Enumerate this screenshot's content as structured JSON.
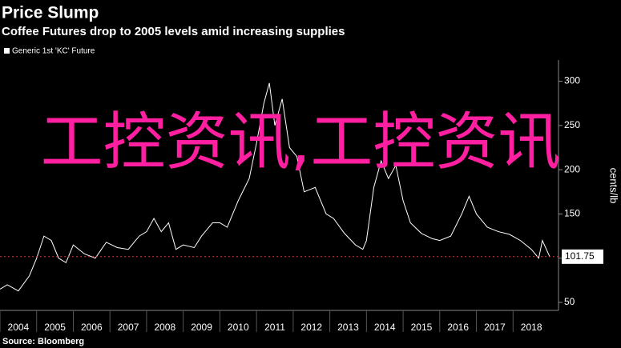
{
  "chart_data": {
    "type": "line",
    "title": "Price Slump",
    "subtitle": "Coffee Futures drop to 2005 levels amid increasing supplies",
    "y_label": "cents/lb",
    "source": "Source: Bloomberg",
    "watermark": "工控资讯,工控资讯",
    "x": [
      2004.0,
      2004.2,
      2004.5,
      2004.8,
      2005.0,
      2005.2,
      2005.4,
      2005.6,
      2005.8,
      2006.0,
      2006.3,
      2006.6,
      2006.9,
      2007.2,
      2007.5,
      2007.8,
      2008.0,
      2008.2,
      2008.4,
      2008.6,
      2008.8,
      2009.0,
      2009.3,
      2009.5,
      2009.8,
      2010.0,
      2010.2,
      2010.5,
      2010.8,
      2011.0,
      2011.2,
      2011.35,
      2011.5,
      2011.7,
      2011.9,
      2012.1,
      2012.3,
      2012.6,
      2012.9,
      2013.1,
      2013.4,
      2013.7,
      2013.9,
      2014.0,
      2014.2,
      2014.4,
      2014.6,
      2014.8,
      2015.0,
      2015.2,
      2015.5,
      2015.8,
      2016.0,
      2016.3,
      2016.6,
      2016.8,
      2017.0,
      2017.3,
      2017.6,
      2017.9,
      2018.2,
      2018.5,
      2018.7,
      2018.8,
      2019.0
    ],
    "series": [
      {
        "name": "Generic 1st 'KC' Future",
        "color": "#ffffff",
        "values": [
          65,
          70,
          63,
          80,
          100,
          125,
          120,
          100,
          95,
          115,
          105,
          100,
          118,
          112,
          110,
          125,
          130,
          145,
          130,
          140,
          110,
          115,
          112,
          125,
          140,
          140,
          135,
          165,
          190,
          230,
          275,
          298,
          250,
          280,
          225,
          215,
          175,
          180,
          150,
          145,
          128,
          115,
          110,
          120,
          180,
          210,
          190,
          205,
          165,
          140,
          128,
          122,
          120,
          125,
          150,
          170,
          150,
          135,
          130,
          127,
          120,
          110,
          100,
          120,
          101.75
        ]
      }
    ],
    "xlim": [
      2004,
      2019.24
    ],
    "xticks": [
      2004,
      2005,
      2006,
      2007,
      2008,
      2009,
      2010,
      2011,
      2012,
      2013,
      2014,
      2015,
      2016,
      2017,
      2018
    ],
    "ylim": [
      41,
      324
    ],
    "yticks": [
      50,
      100,
      150,
      200,
      250,
      300
    ],
    "grid": false,
    "last_marker_color": "#e0303a"
  }
}
